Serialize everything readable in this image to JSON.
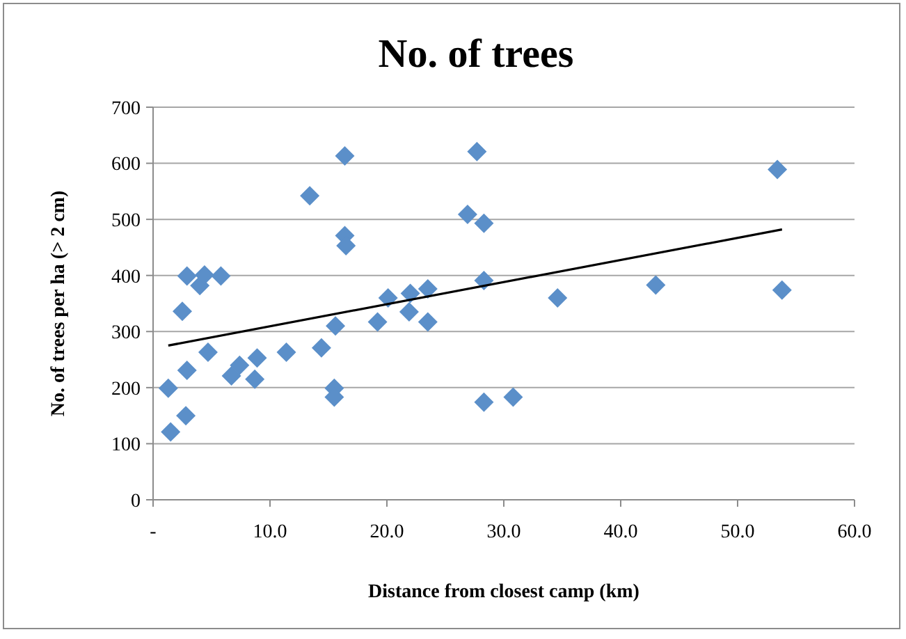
{
  "chart_data": {
    "type": "scatter",
    "title": "No. of trees",
    "xlabel": "Distance from closest camp (km)",
    "ylabel": "No. of trees per ha (> 2 cm)",
    "xlim": [
      0,
      60
    ],
    "xticks": [
      {
        "value": 0,
        "label": "-"
      },
      {
        "value": 10,
        "label": "10.0"
      },
      {
        "value": 20,
        "label": "20.0"
      },
      {
        "value": 30,
        "label": "30.0"
      },
      {
        "value": 40,
        "label": "40.0"
      },
      {
        "value": 50,
        "label": "50.0"
      },
      {
        "value": 60,
        "label": "60.0"
      }
    ],
    "ylim": [
      0,
      700
    ],
    "yticks": [
      0,
      100,
      200,
      300,
      400,
      500,
      600,
      700
    ],
    "grid": "y",
    "legend": false,
    "series": [
      {
        "marker": "diamond",
        "color": "#5b8fc9",
        "x": [
          1.3,
          1.5,
          2.8,
          2.9,
          2.5,
          2.9,
          4.0,
          4.4,
          4.7,
          5.8,
          6.7,
          7.4,
          8.9,
          8.7,
          11.4,
          13.4,
          14.4,
          15.5,
          15.5,
          15.6,
          16.4,
          16.4,
          16.5,
          19.2,
          20.1,
          21.9,
          22.0,
          23.5,
          23.5,
          26.9,
          27.7,
          28.3,
          28.3,
          28.3,
          30.8,
          34.6,
          43.0,
          53.4,
          53.8
        ],
        "values": [
          199,
          121,
          150,
          231,
          336,
          399,
          382,
          401,
          263,
          399,
          221,
          240,
          253,
          215,
          263,
          542,
          271,
          199,
          183,
          310,
          613,
          471,
          453,
          317,
          360,
          335,
          368,
          376,
          317,
          509,
          621,
          493,
          391,
          174,
          183,
          360,
          383,
          589,
          374
        ]
      },
      {
        "type": "line",
        "marker": "none",
        "color": "#000000",
        "x": [
          1.3,
          53.8
        ],
        "values": [
          275,
          482
        ]
      }
    ]
  }
}
